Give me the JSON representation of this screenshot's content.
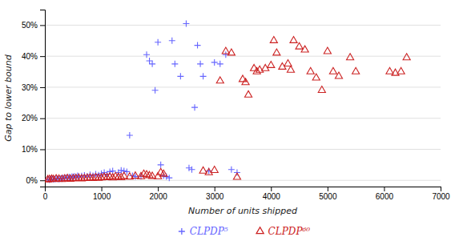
{
  "chart_data": {
    "type": "scatter",
    "xlabel": "Number of units shipped",
    "ylabel": "Gap to lower bound",
    "xlim": [
      0,
      7000
    ],
    "ylim": [
      -2,
      55
    ],
    "xticks": [
      0,
      1000,
      2000,
      3000,
      4000,
      5000,
      6000,
      7000
    ],
    "yticks": [
      {
        "value": 0,
        "label": "0%"
      },
      {
        "value": 10,
        "label": "10%"
      },
      {
        "value": 20,
        "label": "20%"
      },
      {
        "value": 30,
        "label": "30%"
      },
      {
        "value": 40,
        "label": "40%"
      },
      {
        "value": 50,
        "label": "50%"
      }
    ],
    "grid": true,
    "legend": "bottom",
    "series": [
      {
        "name": "CLPDP⁵",
        "color": "#6666ff",
        "marker": "plus",
        "x": [
          50,
          80,
          100,
          120,
          150,
          180,
          200,
          220,
          250,
          280,
          300,
          320,
          350,
          380,
          400,
          430,
          450,
          480,
          500,
          520,
          550,
          580,
          600,
          650,
          700,
          750,
          800,
          850,
          900,
          950,
          1000,
          1050,
          1100,
          1150,
          1200,
          1300,
          1350,
          1400,
          1450,
          1500,
          1550,
          1600,
          1700,
          1800,
          1850,
          1900,
          1950,
          2000,
          2050,
          2100,
          2150,
          2200,
          2250,
          2300,
          2400,
          2500,
          2550,
          2600,
          2650,
          2700,
          2750,
          2800,
          2900,
          3000,
          3100,
          3200,
          3300,
          3400
        ],
        "values": [
          0.3,
          0.2,
          0.4,
          0.5,
          0.3,
          0.4,
          0.6,
          0.5,
          0.4,
          0.6,
          0.5,
          0.8,
          0.7,
          0.9,
          0.8,
          1.0,
          0.9,
          1.2,
          1.0,
          1.3,
          1.1,
          1.5,
          1.2,
          1.4,
          1.6,
          1.3,
          1.8,
          1.5,
          2.0,
          1.7,
          2.2,
          2.5,
          2.0,
          2.8,
          3.0,
          2.5,
          3.2,
          3.0,
          2.8,
          14.5,
          1.5,
          1.2,
          1.3,
          40.5,
          38.5,
          37.5,
          29.0,
          44.5,
          5.0,
          1.5,
          1.2,
          0.8,
          45.0,
          37.5,
          33.5,
          50.5,
          4.0,
          3.5,
          23.5,
          43.5,
          37.5,
          33.5,
          3.0,
          38.0,
          37.5,
          40.5,
          3.5,
          2.5
        ]
      },
      {
        "name": "CLPDP⁶⁰",
        "color": "#cc2222",
        "marker": "triangle",
        "x": [
          50,
          80,
          120,
          150,
          200,
          250,
          300,
          350,
          400,
          450,
          500,
          550,
          600,
          650,
          700,
          750,
          800,
          850,
          900,
          950,
          1000,
          1050,
          1100,
          1150,
          1200,
          1250,
          1300,
          1350,
          1400,
          1500,
          1600,
          1700,
          1750,
          1800,
          1850,
          1900,
          2000,
          2050,
          2100,
          2800,
          2900,
          3000,
          3100,
          3200,
          3300,
          3400,
          3500,
          3550,
          3600,
          3700,
          3750,
          3800,
          3900,
          4000,
          4050,
          4100,
          4200,
          4300,
          4350,
          4400,
          4500,
          4600,
          4700,
          4800,
          4900,
          5000,
          5100,
          5200,
          5400,
          5500,
          6100,
          6200,
          6300,
          6400
        ],
        "values": [
          0.2,
          0.3,
          0.4,
          0.3,
          0.5,
          0.4,
          0.3,
          0.5,
          0.6,
          0.4,
          0.5,
          0.6,
          0.7,
          0.5,
          0.6,
          0.7,
          0.8,
          0.6,
          0.9,
          0.7,
          0.8,
          1.0,
          0.9,
          1.1,
          0.8,
          1.2,
          1.0,
          0.9,
          1.3,
          1.1,
          1.4,
          1.2,
          2.0,
          1.8,
          1.5,
          1.3,
          1.2,
          2.5,
          2.0,
          3.0,
          2.5,
          3.2,
          32.0,
          41.5,
          41.0,
          1.0,
          32.5,
          31.5,
          27.5,
          36.0,
          35.0,
          35.5,
          36.0,
          37.0,
          45.0,
          41.0,
          36.5,
          37.5,
          35.5,
          45.0,
          43.0,
          42.0,
          35.0,
          33.0,
          29.0,
          41.5,
          35.0,
          33.5,
          39.5,
          35.0,
          35.0,
          34.5,
          35.0,
          39.5
        ]
      }
    ]
  }
}
